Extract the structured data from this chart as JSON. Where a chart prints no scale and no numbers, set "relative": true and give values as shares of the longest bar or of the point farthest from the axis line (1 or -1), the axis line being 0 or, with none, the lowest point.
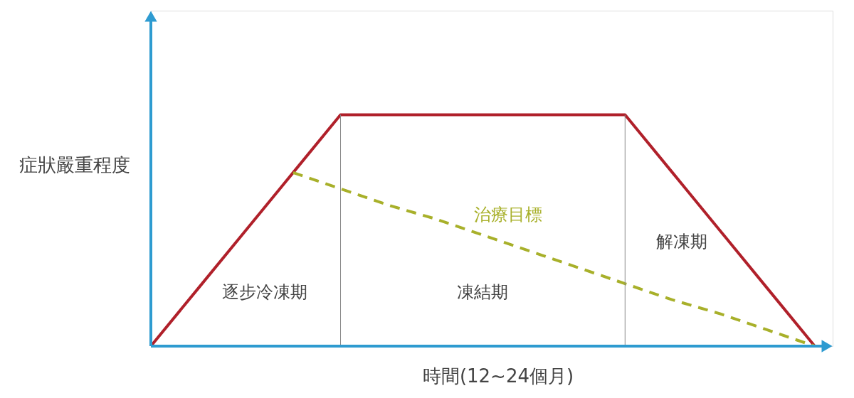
{
  "chart_data": {
    "type": "line",
    "relative": true,
    "xlabel": "時間(12~24個月)",
    "ylabel": "症狀嚴重程度",
    "categories": [
      null,
      null,
      null,
      null,
      null,
      null,
      null,
      null,
      null,
      null,
      null,
      null,
      null,
      null,
      null
    ],
    "series": [
      {
        "color": "#b0202a",
        "values": [
          0,
          0.25,
          0.5,
          0.75,
          1,
          1,
          1,
          1,
          1,
          1,
          1,
          0.75,
          0.5,
          0.25,
          0
        ],
        "line_style": "solid"
      },
      {
        "name": "治療目標",
        "color": "#a8b02a",
        "values": [
          null,
          null,
          null,
          0.75,
          0.68,
          0.61,
          0.55,
          0.48,
          0.41,
          0.34,
          0.27,
          0.2,
          0.14,
          0.07,
          0
        ],
        "line_style": "dashed"
      }
    ],
    "annotations": [
      "逐步冷凍期",
      "凍結期",
      "解凍期"
    ],
    "marker": "none"
  }
}
